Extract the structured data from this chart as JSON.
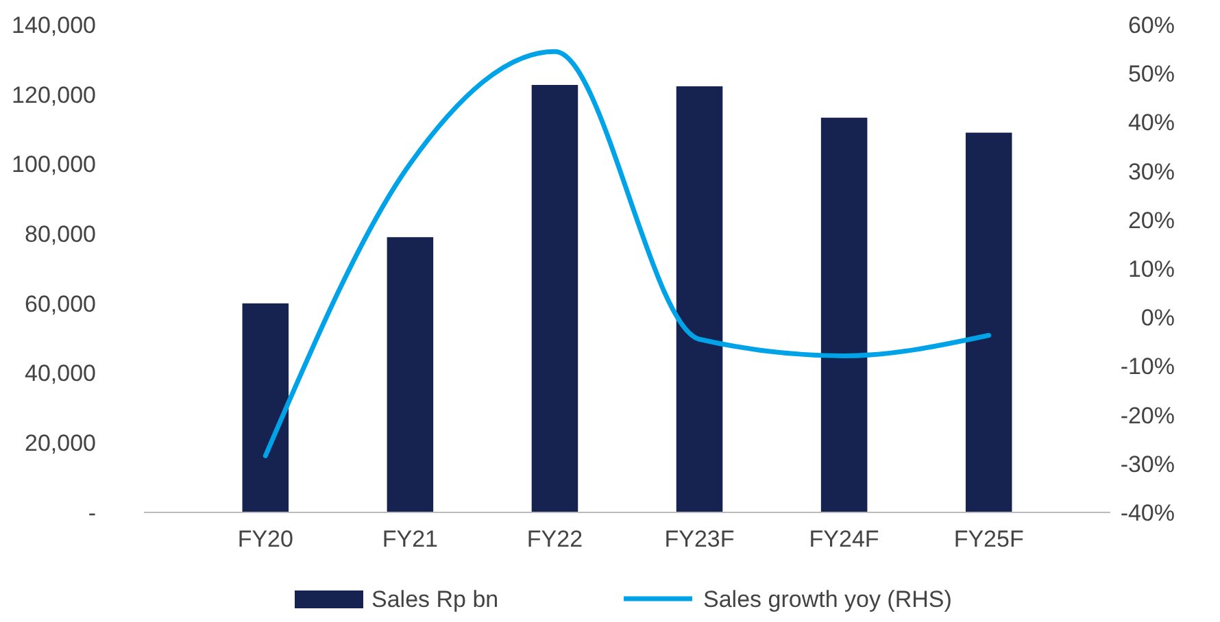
{
  "chart_data": {
    "type": "bar",
    "categories": [
      "FY20",
      "FY21",
      "FY22",
      "FY23F",
      "FY24F",
      "FY25F"
    ],
    "series": [
      {
        "name": "Sales Rp bn",
        "color": "#16224f",
        "values": [
          60000,
          79000,
          122700,
          122300,
          113300,
          109000
        ]
      },
      {
        "name": "Sales growth yoy (RHS)",
        "type": "line",
        "axis": "y2",
        "color": "#00a3e8",
        "values": [
          -28.4,
          31.5,
          54.5,
          -4.5,
          -7.9,
          -3.7
        ]
      }
    ],
    "ylim": [
      0,
      140000
    ],
    "yticks": [
      {
        "value": 0,
        "label": "-"
      },
      {
        "value": 20000,
        "label": "20,000"
      },
      {
        "value": 40000,
        "label": "40,000"
      },
      {
        "value": 60000,
        "label": "60,000"
      },
      {
        "value": 80000,
        "label": "80,000"
      },
      {
        "value": 100000,
        "label": "100,000"
      },
      {
        "value": 120000,
        "label": "120,000"
      },
      {
        "value": 140000,
        "label": "140,000"
      }
    ],
    "y2lim": [
      -40,
      60
    ],
    "y2ticks": [
      {
        "value": -40,
        "label": "-40%"
      },
      {
        "value": -30,
        "label": "-30%"
      },
      {
        "value": -20,
        "label": "-20%"
      },
      {
        "value": -10,
        "label": "-10%"
      },
      {
        "value": 0,
        "label": "0%"
      },
      {
        "value": 10,
        "label": "10%"
      },
      {
        "value": 20,
        "label": "20%"
      },
      {
        "value": 30,
        "label": "30%"
      },
      {
        "value": 40,
        "label": "40%"
      },
      {
        "value": 50,
        "label": "50%"
      },
      {
        "value": 60,
        "label": "60%"
      }
    ],
    "legend": "bottom",
    "marker": "none"
  }
}
